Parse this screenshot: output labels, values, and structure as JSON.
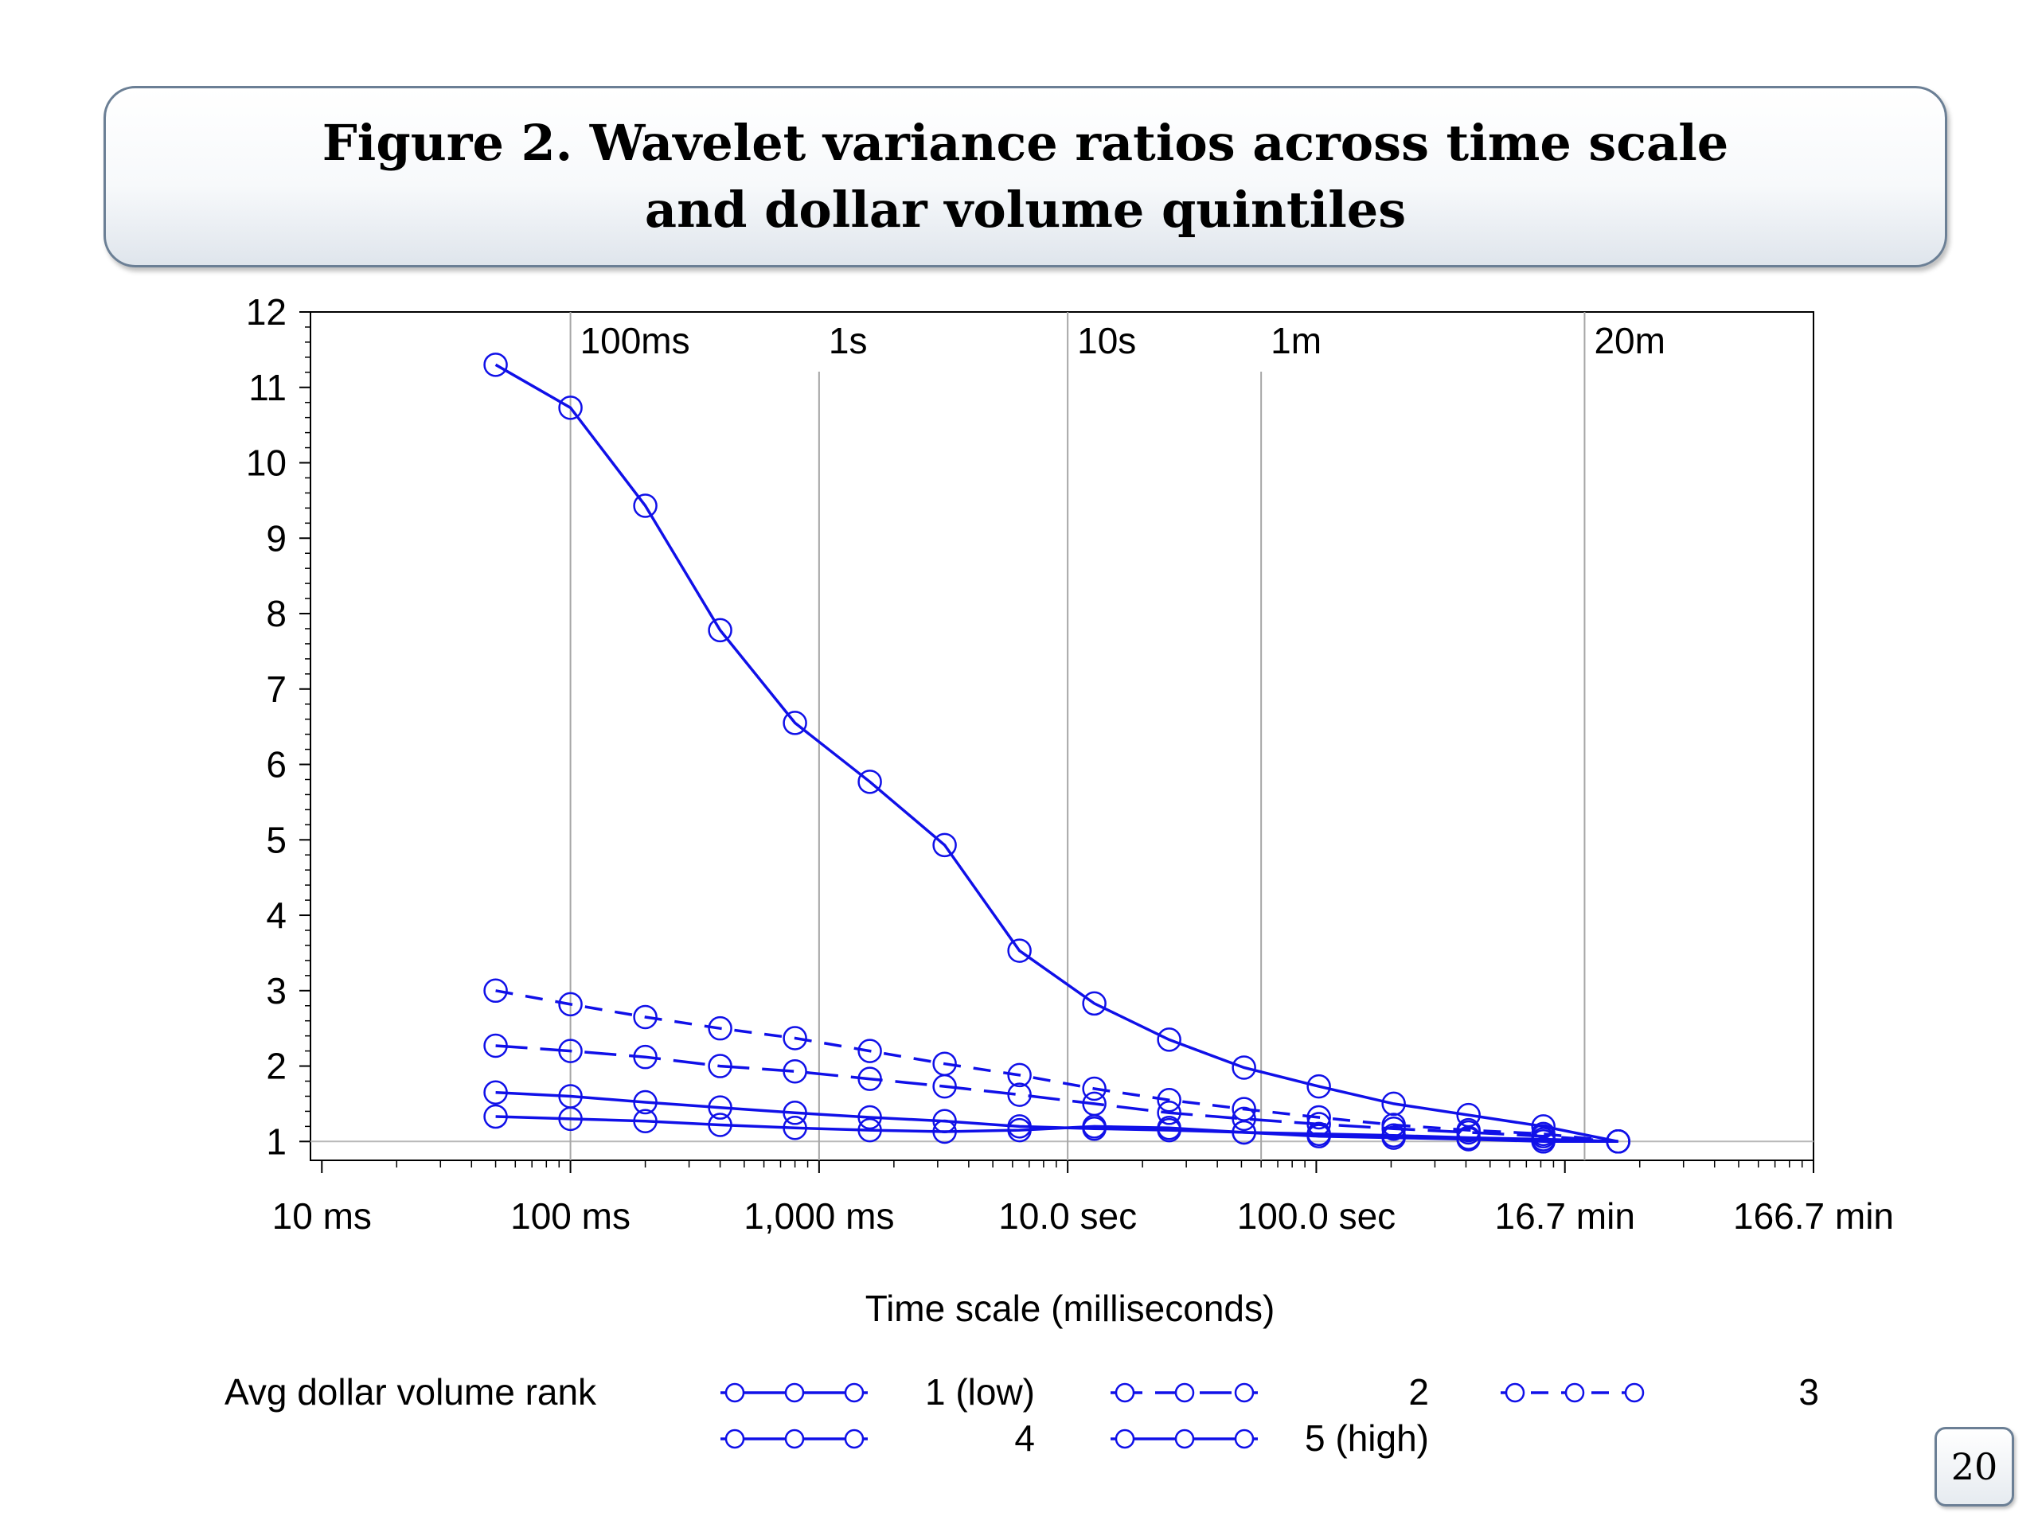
{
  "slide": {
    "title_line1": "Figure 2. Wavelet variance ratios across time scale",
    "title_line2": "and dollar volume quintiles",
    "page_number": "20"
  },
  "chart_data": {
    "type": "line",
    "xlabel": "Time scale (milliseconds)",
    "ylabel": "",
    "x_scale": "log10",
    "xlim_ms": [
      9.0,
      10000000
    ],
    "ylim": [
      1,
      12
    ],
    "x_ticks": [
      {
        "value": 10,
        "label": "10 ms"
      },
      {
        "value": 100,
        "label": "100 ms"
      },
      {
        "value": 1000,
        "label": "1,000 ms"
      },
      {
        "value": 10000,
        "label": "10.0 sec"
      },
      {
        "value": 100000,
        "label": "100.0 sec"
      },
      {
        "value": 1000000,
        "label": "16.7 min"
      },
      {
        "value": 10000000,
        "label": "166.7 min"
      }
    ],
    "y_ticks": [
      1,
      2,
      3,
      4,
      5,
      6,
      7,
      8,
      9,
      10,
      11,
      12
    ],
    "reference_lines": [
      {
        "x": 100,
        "label": "100ms"
      },
      {
        "x": 1000,
        "label": "1s"
      },
      {
        "x": 10000,
        "label": "10s"
      },
      {
        "x": 60000,
        "label": "1m"
      },
      {
        "x": 1200000,
        "label": "20m"
      }
    ],
    "baseline_y": 1,
    "grid": false,
    "legend": {
      "title": "Avg dollar volume rank",
      "position": "bottom",
      "entries": [
        "1 (low)",
        "2",
        "3",
        "4",
        "5 (high)"
      ]
    },
    "x": [
      50,
      100,
      200,
      400,
      800,
      1600,
      3200,
      6400,
      12800,
      25600,
      51200,
      102400,
      204800,
      409600,
      819200,
      1638400
    ],
    "series": [
      {
        "name": "1 (low)",
        "dash": "solid",
        "color": "#1010e8",
        "values": [
          11.3,
          10.73,
          9.43,
          7.78,
          6.55,
          5.77,
          4.93,
          3.53,
          2.83,
          2.35,
          1.98,
          1.73,
          1.5,
          1.35,
          1.2,
          1.0
        ]
      },
      {
        "name": "2",
        "dash": "medium",
        "color": "#1010e8",
        "values": [
          2.27,
          2.2,
          2.12,
          2.0,
          1.93,
          1.83,
          1.73,
          1.62,
          1.5,
          1.38,
          1.3,
          1.23,
          1.17,
          1.12,
          1.07,
          1.0
        ]
      },
      {
        "name": "3",
        "dash": "short",
        "color": "#1010e8",
        "values": [
          3.0,
          2.82,
          2.65,
          2.5,
          2.37,
          2.2,
          2.03,
          1.88,
          1.7,
          1.55,
          1.43,
          1.32,
          1.22,
          1.15,
          1.1,
          1.0
        ]
      },
      {
        "name": "4",
        "dash": "solid",
        "color": "#1010e8",
        "values": [
          1.65,
          1.6,
          1.52,
          1.45,
          1.38,
          1.32,
          1.27,
          1.2,
          1.17,
          1.15,
          1.12,
          1.1,
          1.08,
          1.05,
          1.03,
          1.0
        ]
      },
      {
        "name": "5 (high)",
        "dash": "solid",
        "color": "#1010e8",
        "values": [
          1.33,
          1.3,
          1.27,
          1.22,
          1.18,
          1.15,
          1.13,
          1.15,
          1.2,
          1.18,
          1.12,
          1.07,
          1.05,
          1.03,
          1.0,
          1.0
        ]
      }
    ]
  }
}
